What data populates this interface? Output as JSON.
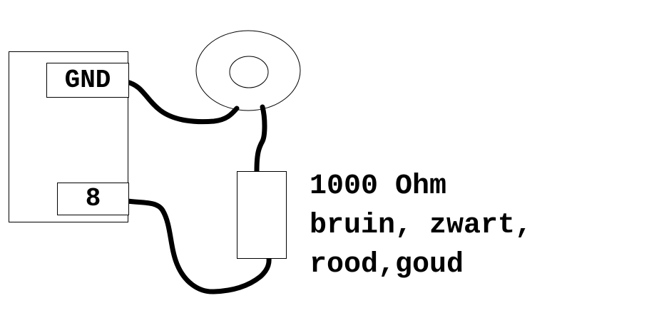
{
  "pins": {
    "gnd": "GND",
    "pin8": "8"
  },
  "resistor_note": {
    "line1": "1000 Ohm",
    "line2": "bruin, zwart,",
    "line3": "rood,goud"
  }
}
